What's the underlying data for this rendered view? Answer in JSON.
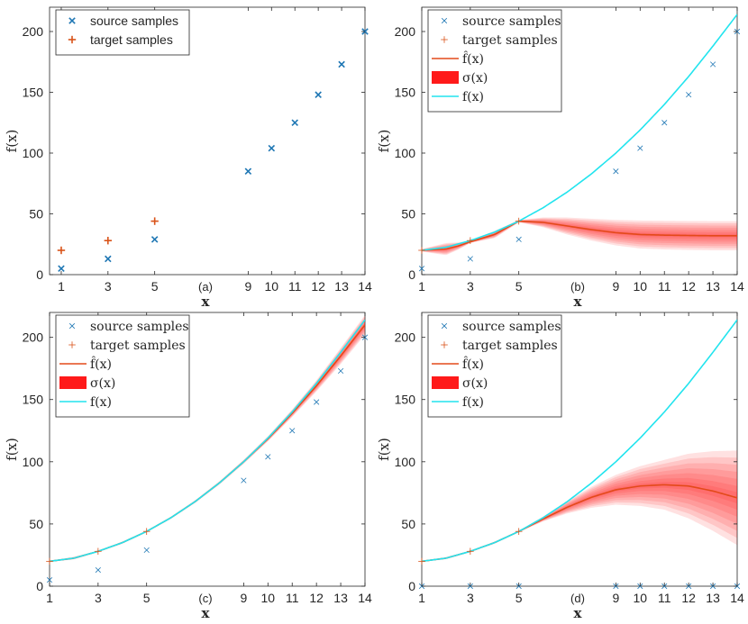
{
  "figure": {
    "colors": {
      "source": "#1f77b4",
      "target": "#d95319",
      "mean": "#e34a1a",
      "band": "#ff1a1a",
      "truth": "#22e4ee",
      "axis": "#262626"
    }
  },
  "chart_data": [
    {
      "id": "a",
      "type": "scatter",
      "panel_label": "(a)",
      "xlabel": "x",
      "ylabel": "f(x)",
      "xlim": [
        0.5,
        14
      ],
      "ylim": [
        0,
        220
      ],
      "xticks": [
        1,
        3,
        5,
        9,
        10,
        11,
        12,
        13,
        14
      ],
      "yticks": [
        0,
        50,
        100,
        150,
        200
      ],
      "legend": {
        "location": "top-left",
        "font": "sans",
        "entries": [
          {
            "label": "source samples",
            "marker": "x"
          },
          {
            "label": "target samples",
            "marker": "+"
          }
        ]
      },
      "source": {
        "x": [
          1,
          3,
          5,
          9,
          10,
          11,
          12,
          13,
          14
        ],
        "y": [
          5,
          13,
          29,
          85,
          104,
          125,
          148,
          173,
          200
        ]
      },
      "target": {
        "x": [
          1,
          3,
          5
        ],
        "y": [
          20,
          28,
          44
        ]
      }
    },
    {
      "id": "b",
      "type": "line",
      "panel_label": "(b)",
      "xlabel": "x",
      "ylabel": "f(x)",
      "xlim": [
        1,
        14
      ],
      "ylim": [
        0,
        220
      ],
      "xticks": [
        1,
        3,
        5,
        9,
        10,
        11,
        12,
        13,
        14
      ],
      "yticks": [
        0,
        50,
        100,
        150,
        200
      ],
      "legend": {
        "location": "top-left",
        "font": "serif",
        "entries": [
          {
            "label": "source samples",
            "marker": "x"
          },
          {
            "label": "target samples",
            "marker": "+"
          },
          {
            "label": "f̂(x)",
            "marker": "mean"
          },
          {
            "label": "σ(x)",
            "marker": "band"
          },
          {
            "label": "f(x)",
            "marker": "truth"
          }
        ]
      },
      "source": {
        "x": [
          1,
          3,
          5,
          9,
          10,
          11,
          12,
          13,
          14
        ],
        "y": [
          5,
          13,
          29,
          85,
          104,
          125,
          148,
          173,
          200
        ]
      },
      "target": {
        "x": [
          1,
          3,
          5
        ],
        "y": [
          20,
          28,
          44
        ]
      },
      "truth": {
        "x": [
          1,
          2,
          3,
          4,
          5,
          6,
          7,
          8,
          9,
          10,
          11,
          12,
          13,
          14
        ],
        "y": [
          20,
          22.5,
          28,
          35,
          44,
          55,
          68,
          83,
          100,
          119,
          140,
          163,
          188,
          214
        ]
      },
      "prediction": {
        "x": [
          1,
          2,
          2.5,
          3,
          4,
          5,
          6,
          7,
          8,
          9,
          10,
          11,
          12,
          13,
          14
        ],
        "mean": [
          20,
          21,
          23.5,
          27,
          33,
          44,
          43,
          40,
          37,
          34.5,
          33,
          32.5,
          32.2,
          32,
          32
        ],
        "sigma": [
          1,
          5,
          3,
          1,
          3,
          1,
          4,
          7,
          9,
          10.5,
          11.5,
          11.8,
          11.9,
          12,
          12
        ]
      }
    },
    {
      "id": "c",
      "type": "line",
      "panel_label": "(c)",
      "xlabel": "x",
      "ylabel": "f(x)",
      "xlim": [
        1,
        14
      ],
      "ylim": [
        0,
        220
      ],
      "xticks": [
        1,
        3,
        5,
        9,
        10,
        11,
        12,
        13,
        14
      ],
      "yticks": [
        0,
        50,
        100,
        150,
        200
      ],
      "legend": {
        "location": "top-left",
        "font": "serif",
        "entries": [
          {
            "label": "source samples",
            "marker": "x"
          },
          {
            "label": "target samples",
            "marker": "+"
          },
          {
            "label": "f̂(x)",
            "marker": "mean"
          },
          {
            "label": "σ(x)",
            "marker": "band"
          },
          {
            "label": "f(x)",
            "marker": "truth"
          }
        ]
      },
      "source": {
        "x": [
          1,
          3,
          5,
          9,
          10,
          11,
          12,
          13,
          14
        ],
        "y": [
          5,
          13,
          29,
          85,
          104,
          125,
          148,
          173,
          200
        ]
      },
      "target": {
        "x": [
          1,
          3,
          5
        ],
        "y": [
          20,
          28,
          44
        ]
      },
      "truth": {
        "x": [
          1,
          2,
          3,
          4,
          5,
          6,
          7,
          8,
          9,
          10,
          11,
          12,
          13,
          14
        ],
        "y": [
          20,
          22.5,
          28,
          35,
          44,
          55,
          68,
          83,
          100,
          119,
          140,
          163,
          188,
          214
        ]
      },
      "prediction": {
        "x": [
          1,
          2,
          3,
          4,
          5,
          6,
          7,
          8,
          9,
          10,
          11,
          12,
          13,
          14
        ],
        "mean": [
          20,
          22.5,
          28,
          35,
          44,
          55,
          68,
          83,
          100,
          118.5,
          139,
          161,
          185,
          210
        ],
        "sigma": [
          0.5,
          1,
          0.5,
          0.8,
          0.5,
          0.8,
          1,
          1.2,
          1.5,
          2,
          3,
          4.5,
          6.5,
          8
        ]
      }
    },
    {
      "id": "d",
      "type": "line",
      "panel_label": "(d)",
      "xlabel": "x",
      "ylabel": "f(x)",
      "xlim": [
        1,
        14
      ],
      "ylim": [
        0,
        220
      ],
      "xticks": [
        1,
        3,
        5,
        9,
        10,
        11,
        12,
        13,
        14
      ],
      "yticks": [
        0,
        50,
        100,
        150,
        200
      ],
      "legend": {
        "location": "top-left",
        "font": "serif",
        "entries": [
          {
            "label": "source samples",
            "marker": "x"
          },
          {
            "label": "target samples",
            "marker": "+"
          },
          {
            "label": "f̂(x)",
            "marker": "mean"
          },
          {
            "label": "σ(x)",
            "marker": "band"
          },
          {
            "label": "f(x)",
            "marker": "truth"
          }
        ]
      },
      "source": {
        "x": [
          1,
          3,
          5,
          9,
          10,
          11,
          12,
          13,
          14
        ],
        "y": [
          0,
          0,
          0,
          0,
          0,
          0,
          0,
          0,
          0
        ]
      },
      "target": {
        "x": [
          1,
          3,
          5
        ],
        "y": [
          20,
          28,
          44
        ]
      },
      "truth": {
        "x": [
          1,
          2,
          3,
          4,
          5,
          6,
          7,
          8,
          9,
          10,
          11,
          12,
          13,
          14
        ],
        "y": [
          20,
          22.5,
          28,
          35,
          44,
          55,
          68,
          83,
          100,
          119,
          140,
          163,
          188,
          214
        ]
      },
      "prediction": {
        "x": [
          1,
          2,
          3,
          4,
          5,
          6,
          7,
          8,
          9,
          10,
          11,
          12,
          13,
          14
        ],
        "mean": [
          20,
          22.5,
          28,
          35,
          44,
          54,
          63.5,
          71.5,
          77.5,
          80.5,
          81.5,
          80.5,
          76.5,
          71
        ],
        "sigma": [
          0.5,
          0.8,
          0.5,
          0.8,
          0.5,
          2,
          5,
          8.5,
          12,
          16,
          20,
          26,
          32,
          38
        ]
      }
    }
  ]
}
